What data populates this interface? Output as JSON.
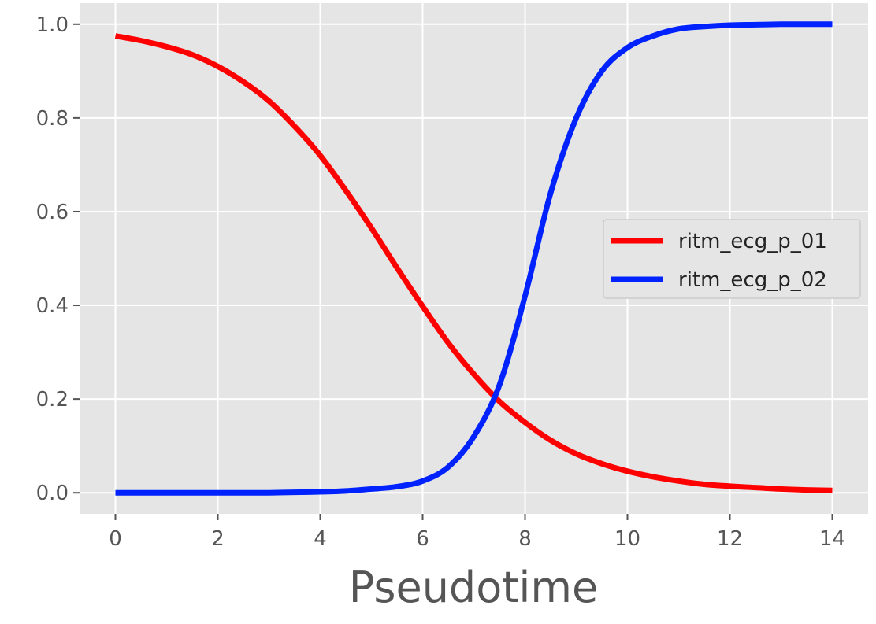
{
  "chart_data": {
    "type": "line",
    "title": "",
    "xlabel": "Pseudotime",
    "ylabel": "",
    "xlim": [
      -0.7,
      14.7
    ],
    "ylim": [
      -0.045,
      1.045
    ],
    "xticks": [
      0,
      2,
      4,
      6,
      8,
      10,
      12,
      14
    ],
    "xtick_labels": [
      "0",
      "2",
      "4",
      "6",
      "8",
      "10",
      "12",
      "14"
    ],
    "yticks": [
      0.0,
      0.2,
      0.4,
      0.6,
      0.8,
      1.0
    ],
    "ytick_labels": [
      "0.0",
      "0.2",
      "0.4",
      "0.6",
      "0.8",
      "1.0"
    ],
    "grid": true,
    "legend_position": "center-right",
    "x": [
      0,
      0.5,
      1,
      1.5,
      2,
      2.5,
      3,
      3.5,
      4,
      4.5,
      5,
      5.5,
      6,
      6.5,
      7,
      7.5,
      8,
      8.5,
      9,
      9.5,
      10,
      10.5,
      11,
      11.5,
      12,
      12.5,
      13,
      13.5,
      14
    ],
    "series": [
      {
        "name": "ritm_ecg_p_01",
        "color": "#ff0000",
        "values": [
          0.975,
          0.965,
          0.952,
          0.935,
          0.91,
          0.877,
          0.836,
          0.782,
          0.72,
          0.645,
          0.565,
          0.48,
          0.398,
          0.32,
          0.253,
          0.195,
          0.15,
          0.112,
          0.083,
          0.062,
          0.046,
          0.034,
          0.025,
          0.018,
          0.014,
          0.011,
          0.008,
          0.006,
          0.005
        ]
      },
      {
        "name": "ritm_ecg_p_02",
        "color": "#0022ff",
        "values": [
          0.0,
          0.0,
          0.0,
          0.0,
          0.0,
          0.0,
          0.0,
          0.001,
          0.002,
          0.004,
          0.008,
          0.013,
          0.025,
          0.055,
          0.12,
          0.23,
          0.42,
          0.64,
          0.8,
          0.9,
          0.95,
          0.975,
          0.99,
          0.995,
          0.998,
          0.999,
          1.0,
          1.0,
          1.0
        ]
      }
    ]
  }
}
